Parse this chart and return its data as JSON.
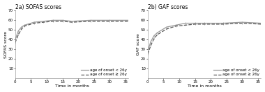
{
  "panel_a": {
    "title": "2a) SOFAS scores",
    "ylabel": "SOFAS score",
    "xlabel": "Time in months",
    "ylim": [
      0,
      70
    ],
    "yticks": [
      10,
      20,
      30,
      40,
      50,
      60,
      70
    ],
    "xticks": [
      0,
      5,
      10,
      15,
      20,
      25,
      30,
      35
    ],
    "xmax": 36,
    "line1": {
      "x": [
        0,
        1,
        2,
        3,
        6,
        9,
        12,
        15,
        18,
        24,
        30,
        36
      ],
      "y": [
        40,
        49,
        53,
        55,
        58,
        59,
        60,
        60,
        59,
        60,
        60,
        60
      ],
      "label": "age of onset < 26y",
      "style": "-",
      "color": "#999999",
      "linewidth": 0.9
    },
    "line2": {
      "x": [
        0,
        1,
        2,
        3,
        6,
        9,
        12,
        15,
        18,
        24,
        30,
        36
      ],
      "y": [
        37,
        45,
        51,
        54,
        57,
        58,
        59,
        59,
        58,
        59,
        59,
        59
      ],
      "label": "age of onset ≥ 26y",
      "style": "--",
      "color": "#555555",
      "linewidth": 0.9
    }
  },
  "panel_b": {
    "title": "2b) GAF scores",
    "ylabel": "GAF score",
    "xlabel": "Time in months",
    "ylim": [
      0,
      70
    ],
    "yticks": [
      10,
      20,
      30,
      40,
      50,
      60,
      70
    ],
    "xticks": [
      0,
      5,
      10,
      15,
      20,
      25,
      30,
      35
    ],
    "xmax": 36,
    "line1": {
      "x": [
        0,
        1,
        2,
        3,
        6,
        9,
        12,
        15,
        18,
        24,
        30,
        36
      ],
      "y": [
        28,
        38,
        44,
        47,
        53,
        55,
        57,
        57,
        57,
        57,
        58,
        57
      ],
      "label": "age of onset < 26y",
      "style": "-",
      "color": "#999999",
      "linewidth": 0.9
    },
    "line2": {
      "x": [
        0,
        1,
        2,
        3,
        6,
        9,
        12,
        15,
        18,
        24,
        30,
        36
      ],
      "y": [
        25,
        34,
        41,
        45,
        51,
        54,
        55,
        56,
        56,
        56,
        57,
        56
      ],
      "label": "age of onset ≥ 26y",
      "style": "--",
      "color": "#555555",
      "linewidth": 0.9
    }
  },
  "background_color": "#ffffff",
  "legend_fontsize": 4.0,
  "title_fontsize": 5.5,
  "axis_label_fontsize": 4.5,
  "tick_fontsize": 4.0
}
